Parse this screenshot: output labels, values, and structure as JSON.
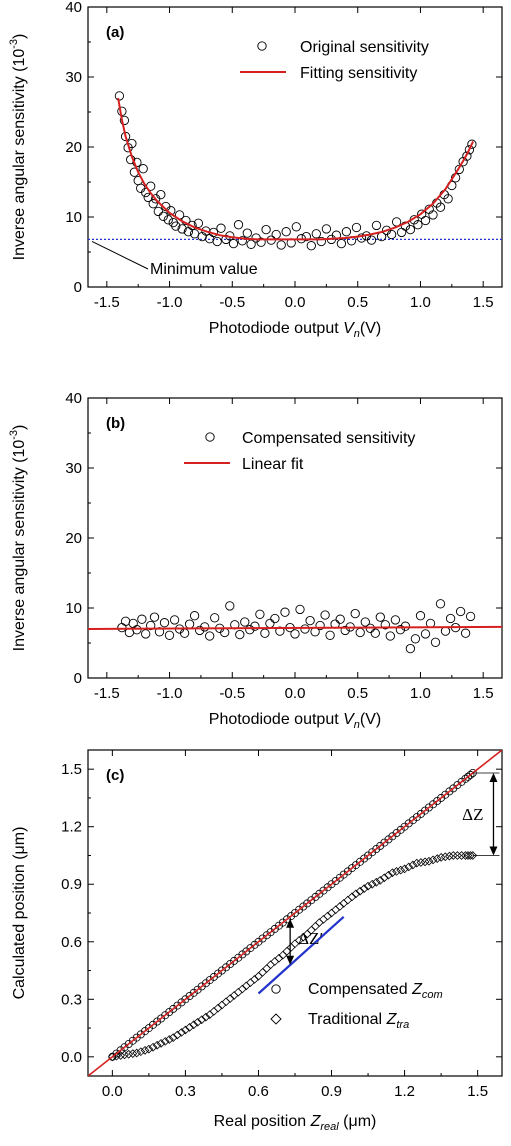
{
  "chart_data": [
    {
      "type": "scatter",
      "panel_label": "(a)",
      "xlabel": "Photodiode output V_n(V)",
      "xlabel_parts": {
        "main": "Photodiode output ",
        "var": "V",
        "sub": "n",
        "unit": "(V)"
      },
      "ylabel": "Inverse angular sensitivity (10^-3)",
      "ylabel_parts": {
        "main": "Inverse angular sensitivity (10",
        "sup": "-3",
        "close": ")"
      },
      "xlim": [
        -1.65,
        1.65
      ],
      "ylim": [
        0,
        40
      ],
      "xticks": [
        "-1.5",
        "-1.0",
        "-0.5",
        "0.0",
        "0.5",
        "1.0",
        "1.5"
      ],
      "xtick_values": [
        -1.5,
        -1.0,
        -0.5,
        0.0,
        0.5,
        1.0,
        1.5
      ],
      "yticks": [
        "0",
        "10",
        "20",
        "30",
        "40"
      ],
      "ytick_values": [
        0,
        10,
        20,
        30,
        40
      ],
      "legend": [
        "Original sensitivity",
        "Fitting sensitivity"
      ],
      "annotation": "Minimum value",
      "minimum_value": 6.8,
      "series": [
        {
          "name": "Original sensitivity",
          "marker": "circle",
          "x": [
            -1.4,
            -1.38,
            -1.36,
            -1.35,
            -1.33,
            -1.31,
            -1.3,
            -1.28,
            -1.26,
            -1.25,
            -1.23,
            -1.21,
            -1.19,
            -1.17,
            -1.15,
            -1.13,
            -1.11,
            -1.09,
            -1.07,
            -1.05,
            -1.03,
            -1.01,
            -0.99,
            -0.97,
            -0.95,
            -0.92,
            -0.9,
            -0.87,
            -0.85,
            -0.82,
            -0.8,
            -0.77,
            -0.74,
            -0.71,
            -0.68,
            -0.65,
            -0.62,
            -0.59,
            -0.55,
            -0.52,
            -0.49,
            -0.45,
            -0.42,
            -0.38,
            -0.35,
            -0.31,
            -0.27,
            -0.23,
            -0.19,
            -0.15,
            -0.11,
            -0.07,
            -0.03,
            0.01,
            0.05,
            0.09,
            0.13,
            0.17,
            0.21,
            0.25,
            0.29,
            0.33,
            0.37,
            0.41,
            0.45,
            0.49,
            0.53,
            0.57,
            0.61,
            0.65,
            0.69,
            0.73,
            0.77,
            0.81,
            0.85,
            0.88,
            0.92,
            0.95,
            0.98,
            1.01,
            1.04,
            1.07,
            1.1,
            1.13,
            1.16,
            1.19,
            1.22,
            1.25,
            1.28,
            1.31,
            1.34,
            1.37,
            1.39,
            1.41
          ],
          "y": [
            27.3,
            25.1,
            23.8,
            21.5,
            19.9,
            18.2,
            20.5,
            16.4,
            17.8,
            15.2,
            14.1,
            16.9,
            13.5,
            12.8,
            14.4,
            11.9,
            12.6,
            10.8,
            13.2,
            10.1,
            11.5,
            9.6,
            10.9,
            9.2,
            8.7,
            10.3,
            8.3,
            9.5,
            7.9,
            8.8,
            7.6,
            9.1,
            7.2,
            8.0,
            6.9,
            7.8,
            6.5,
            8.4,
            6.8,
            7.3,
            6.2,
            8.9,
            6.6,
            7.7,
            6.1,
            7.0,
            6.4,
            8.2,
            6.7,
            7.5,
            6.0,
            7.9,
            6.3,
            8.6,
            6.9,
            7.2,
            5.9,
            7.6,
            6.5,
            8.3,
            6.8,
            7.4,
            6.2,
            7.9,
            6.6,
            8.5,
            7.0,
            7.3,
            6.7,
            8.8,
            7.2,
            8.1,
            7.5,
            9.3,
            7.8,
            8.7,
            8.2,
            9.6,
            8.9,
            10.4,
            9.5,
            11.1,
            10.3,
            12.0,
            11.4,
            13.2,
            12.6,
            14.5,
            15.6,
            16.8,
            17.9,
            18.7,
            19.6,
            20.4
          ]
        },
        {
          "name": "Fitting sensitivity",
          "line": true,
          "x": [
            -1.41,
            -1.38,
            -1.35,
            -1.3,
            -1.25,
            -1.2,
            -1.15,
            -1.1,
            -1.0,
            -0.9,
            -0.8,
            -0.7,
            -0.6,
            -0.5,
            -0.4,
            -0.3,
            -0.2,
            -0.1,
            0.0,
            0.1,
            0.2,
            0.3,
            0.4,
            0.5,
            0.6,
            0.7,
            0.8,
            0.9,
            1.0,
            1.1,
            1.2,
            1.25,
            1.3,
            1.35,
            1.38,
            1.42
          ],
          "y": [
            27.0,
            23.9,
            21.5,
            18.6,
            16.4,
            14.7,
            13.4,
            12.3,
            10.6,
            9.4,
            8.5,
            7.9,
            7.4,
            7.1,
            6.9,
            6.8,
            6.8,
            6.8,
            6.8,
            6.8,
            6.8,
            6.9,
            7.0,
            7.2,
            7.5,
            7.9,
            8.5,
            9.3,
            10.4,
            11.9,
            14.0,
            15.4,
            16.8,
            18.3,
            19.3,
            20.8
          ]
        }
      ]
    },
    {
      "type": "scatter",
      "panel_label": "(b)",
      "xlabel": "Photodiode output V_n(V)",
      "xlabel_parts": {
        "main": "Photodiode output ",
        "var": "V",
        "sub": "n",
        "unit": "(V)"
      },
      "ylabel": "Inverse angular sensitivity (10^-3)",
      "ylabel_parts": {
        "main": "Inverse angular sensitivity (10",
        "sup": "-3",
        "close": ")"
      },
      "xlim": [
        -1.65,
        1.65
      ],
      "ylim": [
        0,
        40
      ],
      "xticks": [
        "-1.5",
        "-1.0",
        "-0.5",
        "0.0",
        "0.5",
        "1.0",
        "1.5"
      ],
      "xtick_values": [
        -1.5,
        -1.0,
        -0.5,
        0.0,
        0.5,
        1.0,
        1.5
      ],
      "yticks": [
        "0",
        "10",
        "20",
        "30",
        "40"
      ],
      "ytick_values": [
        0,
        10,
        20,
        30,
        40
      ],
      "legend": [
        "Compensated sensitivity",
        "Linear fit"
      ],
      "series": [
        {
          "name": "Compensated sensitivity",
          "marker": "circle",
          "x": [
            -1.38,
            -1.35,
            -1.32,
            -1.29,
            -1.26,
            -1.22,
            -1.19,
            -1.15,
            -1.12,
            -1.08,
            -1.04,
            -1.0,
            -0.96,
            -0.92,
            -0.88,
            -0.84,
            -0.8,
            -0.76,
            -0.72,
            -0.68,
            -0.64,
            -0.6,
            -0.56,
            -0.52,
            -0.48,
            -0.44,
            -0.4,
            -0.36,
            -0.32,
            -0.28,
            -0.24,
            -0.2,
            -0.16,
            -0.12,
            -0.08,
            -0.04,
            0.0,
            0.04,
            0.08,
            0.12,
            0.16,
            0.2,
            0.24,
            0.28,
            0.32,
            0.36,
            0.4,
            0.44,
            0.48,
            0.52,
            0.56,
            0.6,
            0.64,
            0.68,
            0.72,
            0.76,
            0.8,
            0.84,
            0.88,
            0.92,
            0.96,
            1.0,
            1.04,
            1.08,
            1.12,
            1.16,
            1.2,
            1.24,
            1.28,
            1.32,
            1.36,
            1.4
          ],
          "y": [
            7.2,
            8.1,
            6.5,
            7.8,
            6.9,
            8.4,
            6.3,
            7.5,
            8.7,
            6.6,
            7.9,
            6.1,
            8.3,
            7.0,
            6.4,
            7.7,
            8.9,
            6.8,
            7.3,
            6.0,
            8.6,
            7.1,
            6.5,
            10.3,
            7.6,
            6.2,
            8.0,
            6.9,
            7.4,
            9.1,
            6.4,
            7.8,
            8.5,
            6.7,
            9.4,
            7.2,
            6.3,
            9.8,
            7.0,
            8.2,
            6.6,
            7.5,
            9.0,
            6.1,
            7.7,
            8.4,
            6.8,
            7.3,
            9.2,
            6.5,
            8.0,
            7.1,
            6.4,
            8.7,
            7.6,
            6.0,
            8.3,
            6.9,
            7.4,
            4.2,
            5.6,
            8.9,
            6.3,
            7.8,
            5.1,
            10.6,
            6.7,
            8.5,
            7.2,
            9.5,
            6.4,
            8.8
          ]
        },
        {
          "name": "Linear fit",
          "line": true,
          "x": [
            -1.65,
            1.65
          ],
          "y": [
            7.0,
            7.3
          ]
        }
      ]
    },
    {
      "type": "scatter",
      "panel_label": "(c)",
      "xlabel": "Real position Z_real (μm)",
      "xlabel_parts": {
        "main": "Real position ",
        "var": "Z",
        "sub": "real",
        "unit": " (μm)"
      },
      "ylabel": "Calculated position (μm)",
      "xlim": [
        -0.1,
        1.6
      ],
      "ylim": [
        -0.1,
        1.6
      ],
      "xticks": [
        "0.0",
        "0.3",
        "0.6",
        "0.9",
        "1.2",
        "1.5"
      ],
      "xtick_values": [
        0.0,
        0.3,
        0.6,
        0.9,
        1.2,
        1.5
      ],
      "yticks": [
        "0.0",
        "0.3",
        "0.6",
        "0.9",
        "1.2",
        "1.5"
      ],
      "ytick_values": [
        0.0,
        0.3,
        0.6,
        0.9,
        1.2,
        1.5
      ],
      "legend": [
        {
          "text": "Compensated ",
          "var": "Z",
          "sub": "com",
          "marker": "circle"
        },
        {
          "text": "Traditional ",
          "var": "Z",
          "sub": "tra",
          "marker": "diamond"
        }
      ],
      "annotations": [
        {
          "text": "ΔZ",
          "x": 1.5,
          "y_from": 1.05,
          "y_to": 1.48
        },
        {
          "text": "ΔZ′",
          "x": 0.73,
          "y_from": 0.48,
          "y_to": 0.72
        }
      ],
      "series": [
        {
          "name": "Compensated Z_com",
          "marker": "circle",
          "x": [
            0.0,
            0.05,
            0.1,
            0.15,
            0.2,
            0.25,
            0.3,
            0.35,
            0.4,
            0.45,
            0.5,
            0.55,
            0.6,
            0.65,
            0.7,
            0.75,
            0.8,
            0.85,
            0.9,
            0.95,
            1.0,
            1.05,
            1.1,
            1.15,
            1.2,
            1.25,
            1.3,
            1.35,
            1.4,
            1.45,
            1.48
          ],
          "y": [
            0.0,
            0.05,
            0.1,
            0.15,
            0.2,
            0.25,
            0.3,
            0.35,
            0.4,
            0.45,
            0.5,
            0.55,
            0.6,
            0.65,
            0.7,
            0.75,
            0.8,
            0.85,
            0.9,
            0.95,
            1.0,
            1.05,
            1.1,
            1.15,
            1.2,
            1.25,
            1.3,
            1.35,
            1.4,
            1.45,
            1.48
          ]
        },
        {
          "name": "Traditional Z_tra",
          "marker": "diamond",
          "x": [
            0.0,
            0.05,
            0.1,
            0.15,
            0.2,
            0.25,
            0.3,
            0.35,
            0.4,
            0.45,
            0.5,
            0.55,
            0.6,
            0.65,
            0.7,
            0.75,
            0.8,
            0.85,
            0.9,
            0.95,
            1.0,
            1.05,
            1.1,
            1.15,
            1.2,
            1.25,
            1.3,
            1.35,
            1.4,
            1.45,
            1.48
          ],
          "y": [
            0.0,
            0.01,
            0.02,
            0.04,
            0.07,
            0.1,
            0.14,
            0.18,
            0.22,
            0.27,
            0.32,
            0.37,
            0.42,
            0.48,
            0.53,
            0.59,
            0.64,
            0.7,
            0.75,
            0.8,
            0.85,
            0.89,
            0.92,
            0.96,
            0.98,
            1.01,
            1.02,
            1.04,
            1.05,
            1.05,
            1.05
          ]
        },
        {
          "name": "ideal line",
          "line": true,
          "color": "#d62020",
          "x": [
            -0.1,
            1.6
          ],
          "y": [
            -0.1,
            1.6
          ]
        },
        {
          "name": "linear segment",
          "line": true,
          "color": "#2233cc",
          "x": [
            0.6,
            0.95
          ],
          "y": [
            0.33,
            0.73
          ]
        }
      ]
    }
  ],
  "colors": {
    "fit": "#d62020",
    "min_line": "#2233cc",
    "linear_segment": "#2233cc"
  }
}
